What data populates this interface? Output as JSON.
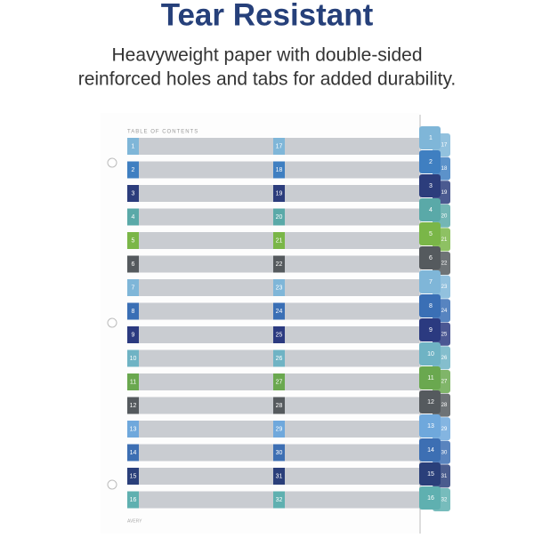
{
  "header": {
    "title": "Tear Resistant",
    "subtitle": [
      "Heavyweight paper with double-sided",
      "reinforced holes and tabs for added durability."
    ]
  },
  "toc": {
    "heading": "TABLE OF CONTENTS",
    "left": [
      1,
      2,
      3,
      4,
      5,
      6,
      7,
      8,
      9,
      10,
      11,
      12,
      13,
      14,
      15,
      16
    ],
    "right": [
      17,
      18,
      19,
      20,
      21,
      22,
      23,
      24,
      25,
      26,
      27,
      28,
      29,
      30,
      31,
      32
    ],
    "colors": [
      "#7fb6d8",
      "#3f7fc1",
      "#2c3d7c",
      "#5aa9a8",
      "#7ab648",
      "#555a5e",
      "#7fb6d8",
      "#3a6fb5",
      "#2b3a80",
      "#6fb3c4",
      "#6aa84f",
      "#555a5e",
      "#6fa8dc",
      "#3d6fb3",
      "#2a3f7a",
      "#5fb0b0"
    ]
  },
  "footer": "AVERY"
}
